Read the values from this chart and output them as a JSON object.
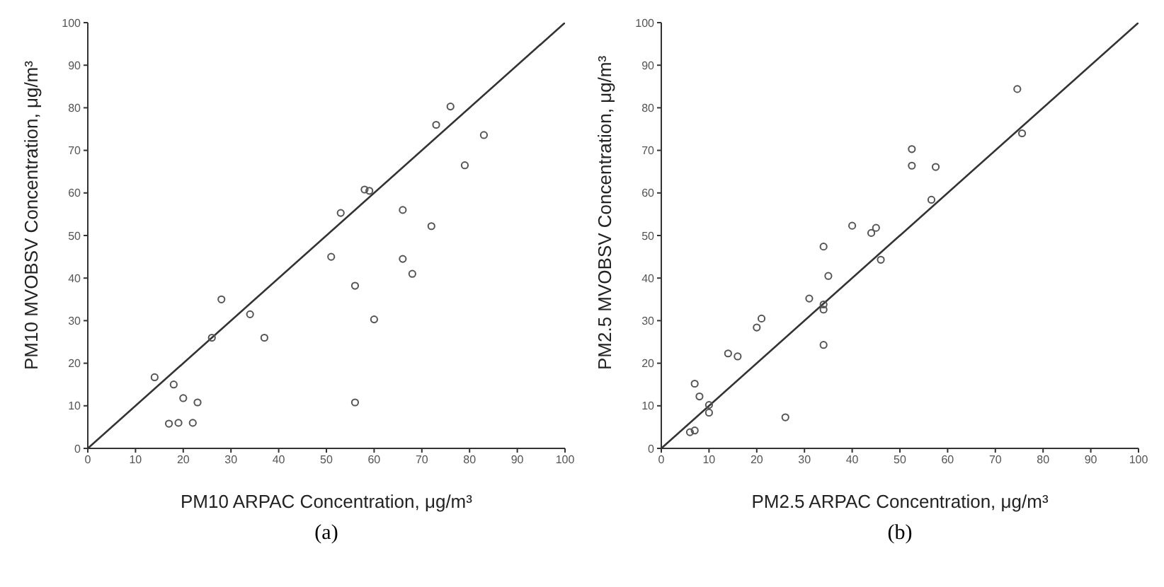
{
  "chart_data": [
    {
      "type": "scatter",
      "xlabel": "PM10 ARPAC Concentration, μg/m³",
      "ylabel": "PM10 MVOBSV Concentration, μg/m³",
      "annotations": [
        "(a)"
      ],
      "xlim": [
        0,
        100
      ],
      "ylim": [
        0,
        100
      ],
      "xticks": [
        0,
        10,
        20,
        30,
        40,
        50,
        60,
        70,
        80,
        90,
        100
      ],
      "yticks": [
        0,
        10,
        20,
        30,
        40,
        50,
        60,
        70,
        80,
        90,
        100
      ],
      "marker": "circle",
      "grid": false,
      "legend": false,
      "series": [
        {
          "color": "#555555",
          "x": [
            14,
            17,
            18,
            19,
            20,
            22,
            23,
            26,
            28,
            34,
            37,
            51,
            53,
            56,
            56,
            58,
            59,
            60,
            66,
            66,
            68,
            72,
            73,
            76,
            79,
            83
          ],
          "values": [
            16.7,
            5.8,
            15,
            6,
            11.8,
            6,
            10.8,
            26,
            35,
            31.5,
            26,
            45,
            55.3,
            38.2,
            10.8,
            60.8,
            60.5,
            30.3,
            56,
            44.5,
            41,
            52.2,
            76,
            80.3,
            66.5,
            73.6
          ]
        },
        {
          "type": "line",
          "color": "#333333",
          "marker": "none",
          "x": [
            0,
            100
          ],
          "values": [
            0,
            100
          ]
        }
      ]
    },
    {
      "type": "scatter",
      "xlabel": "PM2.5 ARPAC Concentration, μg/m³",
      "ylabel": "PM2.5 MVOBSV Concentration, μg/m³",
      "annotations": [
        "(b)"
      ],
      "xlim": [
        0,
        100
      ],
      "ylim": [
        0,
        100
      ],
      "xticks": [
        0,
        10,
        20,
        30,
        40,
        50,
        60,
        70,
        80,
        90,
        100
      ],
      "yticks": [
        0,
        10,
        20,
        30,
        40,
        50,
        60,
        70,
        80,
        90,
        100
      ],
      "marker": "circle",
      "grid": false,
      "legend": false,
      "series": [
        {
          "color": "#555555",
          "x": [
            6,
            7,
            7,
            8,
            10,
            10,
            14,
            16,
            20,
            21,
            26,
            31,
            34,
            34,
            34,
            34,
            35,
            40,
            44,
            45,
            46,
            52.5,
            52.5,
            56.6,
            57.5,
            74.6,
            75.6
          ],
          "values": [
            3.8,
            4.2,
            15.2,
            12.2,
            10.2,
            8.4,
            22.3,
            21.6,
            28.4,
            30.5,
            7.3,
            35.2,
            47.4,
            33.8,
            32.6,
            24.3,
            40.5,
            52.3,
            50.6,
            51.8,
            44.3,
            70.3,
            66.4,
            58.4,
            66.1,
            84.4,
            74
          ]
        },
        {
          "type": "line",
          "color": "#333333",
          "marker": "none",
          "x": [
            0,
            100
          ],
          "values": [
            0,
            100
          ]
        }
      ]
    }
  ]
}
